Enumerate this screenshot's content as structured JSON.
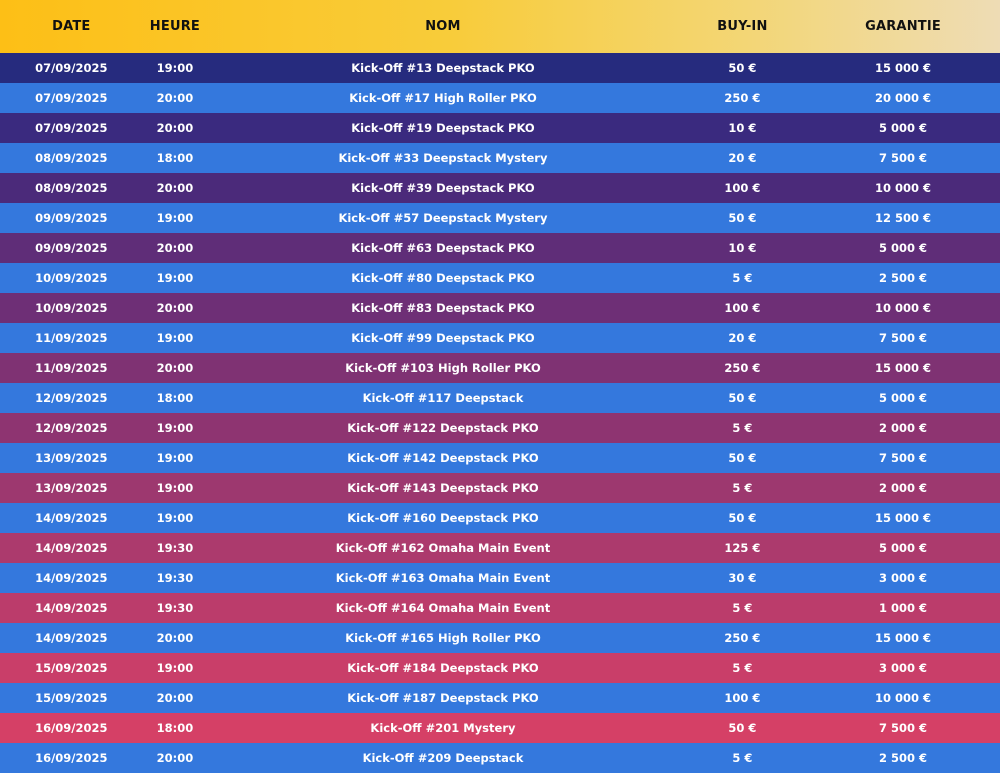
{
  "header": {
    "date": "DATE",
    "heure": "HEURE",
    "nom": "NOM",
    "buyin": "BUY-IN",
    "garantie": "GARANTIE"
  },
  "colors": {
    "header_gradient": [
      "#fdbf16",
      "#eedcb5"
    ],
    "blue_row": "#3478dd",
    "odd_row_gradient": [
      "#262b7e",
      "#3a2a7f",
      "#4b2a7a",
      "#5f2d78",
      "#6e2f76",
      "#7f3273",
      "#8e3471",
      "#9d386f",
      "#ac3a6d",
      "#bb3c6b",
      "#c93e69",
      "#d54066",
      "#df4264",
      "#e84260",
      "#f0405a",
      "#f83c4e"
    ]
  },
  "rows": [
    {
      "date": "07/09/2025",
      "heure": "19:00",
      "nom": "Kick-Off #13 Deepstack PKO",
      "buyin": "50 €",
      "garantie": "15 000 €"
    },
    {
      "date": "07/09/2025",
      "heure": "20:00",
      "nom": "Kick-Off #17 High Roller PKO",
      "buyin": "250 €",
      "garantie": "20 000 €"
    },
    {
      "date": "07/09/2025",
      "heure": "20:00",
      "nom": "Kick-Off #19 Deepstack PKO",
      "buyin": "10 €",
      "garantie": "5 000 €"
    },
    {
      "date": "08/09/2025",
      "heure": "18:00",
      "nom": "Kick-Off #33 Deepstack Mystery",
      "buyin": "20 €",
      "garantie": "7 500 €"
    },
    {
      "date": "08/09/2025",
      "heure": "20:00",
      "nom": "Kick-Off #39 Deepstack PKO",
      "buyin": "100 €",
      "garantie": "10 000 €"
    },
    {
      "date": "09/09/2025",
      "heure": "19:00",
      "nom": "Kick-Off #57 Deepstack Mystery",
      "buyin": "50 €",
      "garantie": "12 500 €"
    },
    {
      "date": "09/09/2025",
      "heure": "20:00",
      "nom": "Kick-Off #63 Deepstack PKO",
      "buyin": "10 €",
      "garantie": "5 000 €"
    },
    {
      "date": "10/09/2025",
      "heure": "19:00",
      "nom": "Kick-Off #80 Deepstack PKO",
      "buyin": "5 €",
      "garantie": "2 500 €"
    },
    {
      "date": "10/09/2025",
      "heure": "20:00",
      "nom": "Kick-Off #83 Deepstack PKO",
      "buyin": "100 €",
      "garantie": "10 000 €"
    },
    {
      "date": "11/09/2025",
      "heure": "19:00",
      "nom": "Kick-Off #99 Deepstack PKO",
      "buyin": "20 €",
      "garantie": "7 500 €"
    },
    {
      "date": "11/09/2025",
      "heure": "20:00",
      "nom": "Kick-Off #103 High Roller PKO",
      "buyin": "250 €",
      "garantie": "15 000 €"
    },
    {
      "date": "12/09/2025",
      "heure": "18:00",
      "nom": "Kick-Off #117 Deepstack",
      "buyin": "50 €",
      "garantie": "5 000 €"
    },
    {
      "date": "12/09/2025",
      "heure": "19:00",
      "nom": "Kick-Off #122 Deepstack PKO",
      "buyin": "5 €",
      "garantie": "2 000 €"
    },
    {
      "date": "13/09/2025",
      "heure": "19:00",
      "nom": "Kick-Off #142 Deepstack PKO",
      "buyin": "50 €",
      "garantie": "7 500 €"
    },
    {
      "date": "13/09/2025",
      "heure": "19:00",
      "nom": "Kick-Off #143 Deepstack PKO",
      "buyin": "5 €",
      "garantie": "2 000 €"
    },
    {
      "date": "14/09/2025",
      "heure": "19:00",
      "nom": "Kick-Off #160 Deepstack PKO",
      "buyin": "50 €",
      "garantie": "15 000 €"
    },
    {
      "date": "14/09/2025",
      "heure": "19:30",
      "nom": "Kick-Off #162 Omaha Main Event",
      "buyin": "125 €",
      "garantie": "5 000 €"
    },
    {
      "date": "14/09/2025",
      "heure": "19:30",
      "nom": "Kick-Off #163 Omaha Main Event",
      "buyin": "30 €",
      "garantie": "3 000 €"
    },
    {
      "date": "14/09/2025",
      "heure": "19:30",
      "nom": "Kick-Off #164 Omaha Main Event",
      "buyin": "5 €",
      "garantie": "1 000 €"
    },
    {
      "date": "14/09/2025",
      "heure": "20:00",
      "nom": "Kick-Off #165 High Roller PKO",
      "buyin": "250 €",
      "garantie": "15 000 €"
    },
    {
      "date": "15/09/2025",
      "heure": "19:00",
      "nom": "Kick-Off #184 Deepstack PKO",
      "buyin": "5 €",
      "garantie": "3 000 €"
    },
    {
      "date": "15/09/2025",
      "heure": "20:00",
      "nom": "Kick-Off #187 Deepstack PKO",
      "buyin": "100 €",
      "garantie": "10 000 €"
    },
    {
      "date": "16/09/2025",
      "heure": "18:00",
      "nom": "Kick-Off #201 Mystery",
      "buyin": "50 €",
      "garantie": "7 500 €"
    },
    {
      "date": "16/09/2025",
      "heure": "20:00",
      "nom": "Kick-Off #209 Deepstack",
      "buyin": "5 €",
      "garantie": "2 500 €"
    }
  ]
}
